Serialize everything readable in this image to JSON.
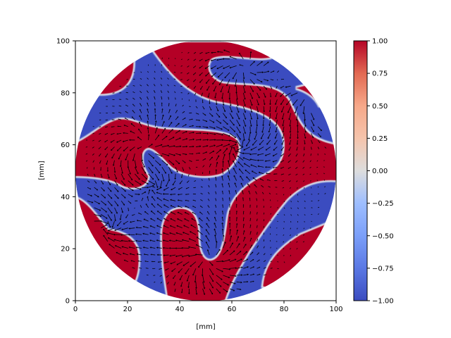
{
  "chart_data": {
    "type": "heatmap",
    "title": "",
    "xlabel": "[mm]",
    "ylabel": "[mm]",
    "xlim": [
      0,
      100
    ],
    "ylim": [
      0,
      100
    ],
    "xticks": [
      "0",
      "20",
      "40",
      "60",
      "80",
      "100"
    ],
    "yticks": [
      "0",
      "20",
      "40",
      "60",
      "80",
      "100"
    ],
    "domain_shape": "circle",
    "colormap": "coolwarm",
    "colorbar": {
      "range": [
        -1.0,
        1.0
      ],
      "ticks": [
        "1.00",
        "0.75",
        "0.50",
        "0.25",
        "0.00",
        "−0.25",
        "−0.50",
        "−0.75",
        "−1.00"
      ],
      "low_color": "#3b4cc0",
      "mid_color": "#dddddd",
      "high_color": "#b40426"
    },
    "overlay": "quiver (vector field arrows)"
  }
}
